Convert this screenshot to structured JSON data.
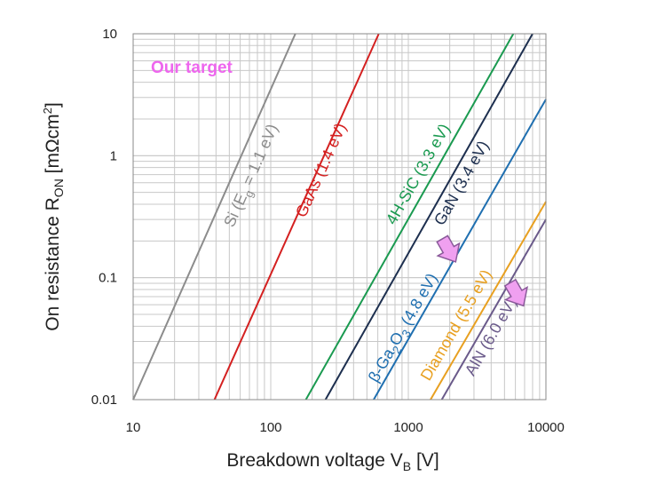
{
  "chart_data": {
    "type": "line",
    "x_scale": "log",
    "y_scale": "log",
    "xlim": [
      10,
      10000
    ],
    "ylim": [
      0.01,
      10
    ],
    "grid": true,
    "xlabel": "Breakdown voltage V",
    "xlabel_sub": "B",
    "xlabel_unit": " [V]",
    "ylabel": "On resistance R",
    "ylabel_sub": "ON",
    "ylabel_unit": " [mΩcm",
    "ylabel_sup": "2",
    "ylabel_end": "]",
    "xticks": [
      {
        "value": 10,
        "label": "10"
      },
      {
        "value": 100,
        "label": "100"
      },
      {
        "value": 1000,
        "label": "1000"
      },
      {
        "value": 10000,
        "label": "10000"
      }
    ],
    "yticks": [
      {
        "value": 0.01,
        "label": "0.01"
      },
      {
        "value": 0.1,
        "label": "0.1"
      },
      {
        "value": 1,
        "label": "1"
      },
      {
        "value": 10,
        "label": "10"
      }
    ],
    "series": [
      {
        "name": "Si",
        "color": "#8c8c8c",
        "label_pre": "Si (E",
        "label_sub": "g",
        "label_post": " = 1.1 eV)",
        "x": [
          10,
          151
        ],
        "y": [
          0.01,
          10
        ]
      },
      {
        "name": "GaAs (1.4 eV)",
        "color": "#d42020",
        "label_pre": "GaAs (1.4 eV)",
        "label_sub": "",
        "label_post": "",
        "x": [
          39,
          610
        ],
        "y": [
          0.01,
          10
        ]
      },
      {
        "name": "4H-SiC (3.3 eV)",
        "color": "#1a9a50",
        "label_pre": "4H-SiC (3.3 eV)",
        "label_sub": "",
        "label_post": "",
        "x": [
          180,
          5800
        ],
        "y": [
          0.01,
          10
        ]
      },
      {
        "name": "GaN (3.4 eV)",
        "color": "#1d2f4f",
        "label_pre": "GaN (3.4 eV)",
        "label_sub": "",
        "label_post": "",
        "x": [
          250,
          8000
        ],
        "y": [
          0.01,
          10
        ]
      },
      {
        "name": "β-Ga2O3 (4.8 eV)",
        "color": "#1f6fb0",
        "label_pre": "β-Ga",
        "label_sub": "2",
        "label_post": "O",
        "label_sub2": "3",
        "label_post2": " (4.8 eV)",
        "x": [
          560,
          10000
        ],
        "y": [
          0.01,
          2.9
        ]
      },
      {
        "name": "Diamond (5.5 eV)",
        "color": "#e8a020",
        "label_pre": "Diamond (5.5 eV)",
        "label_sub": "",
        "label_post": "",
        "x": [
          1450,
          10000
        ],
        "y": [
          0.01,
          0.42
        ]
      },
      {
        "name": "AlN (6.0 eV)",
        "color": "#6a5a8a",
        "label_pre": "AlN (6.0 eV)",
        "label_sub": "",
        "label_post": "",
        "x": [
          1750,
          10000
        ],
        "y": [
          0.01,
          0.3
        ]
      }
    ],
    "annotations": [
      {
        "text": "Our target",
        "color": "#ee66ee"
      }
    ],
    "arrows": [
      {
        "color": "#f0a0f0",
        "stroke": "#8a5a9a",
        "near": "β-Ga2O3",
        "x": 1990,
        "y": 0.165
      },
      {
        "color": "#f0a0f0",
        "stroke": "#8a5a9a",
        "near": "AlN",
        "x": 6200,
        "y": 0.072
      }
    ]
  }
}
